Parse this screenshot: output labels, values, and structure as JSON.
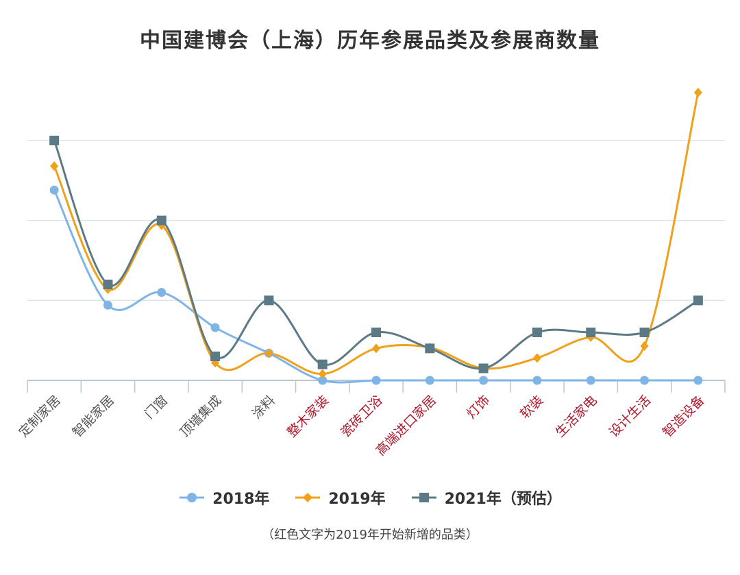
{
  "title": "中国建博会（上海）历年参展品类及参展商数量",
  "note": "（红色文字为2019年开始新增的品类）",
  "colors": {
    "s2018": "#7fb4e6",
    "s2019": "#f0a019",
    "s2021": "#5c7a86",
    "label_existing": "#555555",
    "label_new": "#b0192c",
    "grid": "#dde4ea",
    "axis": "#b8c6d6"
  },
  "chart_data": {
    "type": "line",
    "smooth": true,
    "title": "中国建博会（上海）历年参展品类及参展商数量",
    "categories": [
      "定制家居",
      "智能家居",
      "门窗",
      "顶墙集成",
      "涂料",
      "整木家装",
      "瓷砖卫浴",
      "高端进口家居",
      "灯饰",
      "软装",
      "生活家电",
      "设计生活",
      "智造设备"
    ],
    "new_categories": [
      "整木家装",
      "瓷砖卫浴",
      "高端进口家居",
      "灯饰",
      "软装",
      "生活家电",
      "设计生活",
      "智造设备"
    ],
    "series": [
      {
        "name": "2018年",
        "marker": "circle",
        "values": [
          238,
          94,
          110,
          66,
          34,
          0,
          0,
          0,
          0,
          0,
          0,
          0,
          0
        ]
      },
      {
        "name": "2019年",
        "marker": "diamond",
        "values": [
          268,
          114,
          194,
          22,
          34,
          8,
          40,
          41,
          15,
          28,
          54,
          43,
          360
        ]
      },
      {
        "name": "2021年（预估）",
        "marker": "square",
        "values": [
          300,
          120,
          200,
          30,
          100,
          20,
          60,
          40,
          15,
          60,
          60,
          60,
          100
        ]
      }
    ],
    "ylim": [
      0,
      300
    ],
    "yticks": [
      0,
      100,
      200,
      300
    ],
    "y_axis_labels_shown": false,
    "grid": true,
    "legend": "bottom"
  }
}
